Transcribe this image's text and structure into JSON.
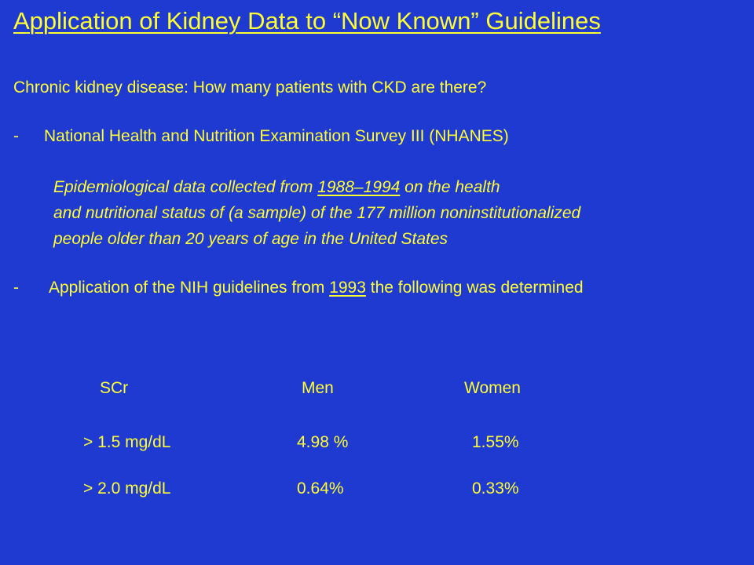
{
  "title": "Application of Kidney Data to “Now Known” Guidelines",
  "question": "Chronic kidney disease: How many patients with CKD are there?",
  "bullet1": {
    "dash": "-",
    "text": "National Health and Nutrition Examination Survey III (NHANES)"
  },
  "epidemiology": {
    "line1_pre": "Epidemiological data collected from ",
    "line1_years": "1988–1994",
    "line1_post": " on the health",
    "line2": "and nutritional status of (a sample) of the 177 million noninstitutionalized",
    "line3": "people older than 20 years of age in the United States"
  },
  "bullet2": {
    "dash": "-",
    "pre": "Application of the NIH guidelines from ",
    "year": "1993",
    "post": " the following was determined"
  },
  "table": {
    "headers": [
      "SCr",
      "Men",
      "Women"
    ],
    "rows": [
      [
        "> 1.5 mg/dL",
        "4.98 %",
        "1.55%"
      ],
      [
        "> 2.0 mg/dL",
        "0.64%",
        "0.33%"
      ]
    ]
  }
}
